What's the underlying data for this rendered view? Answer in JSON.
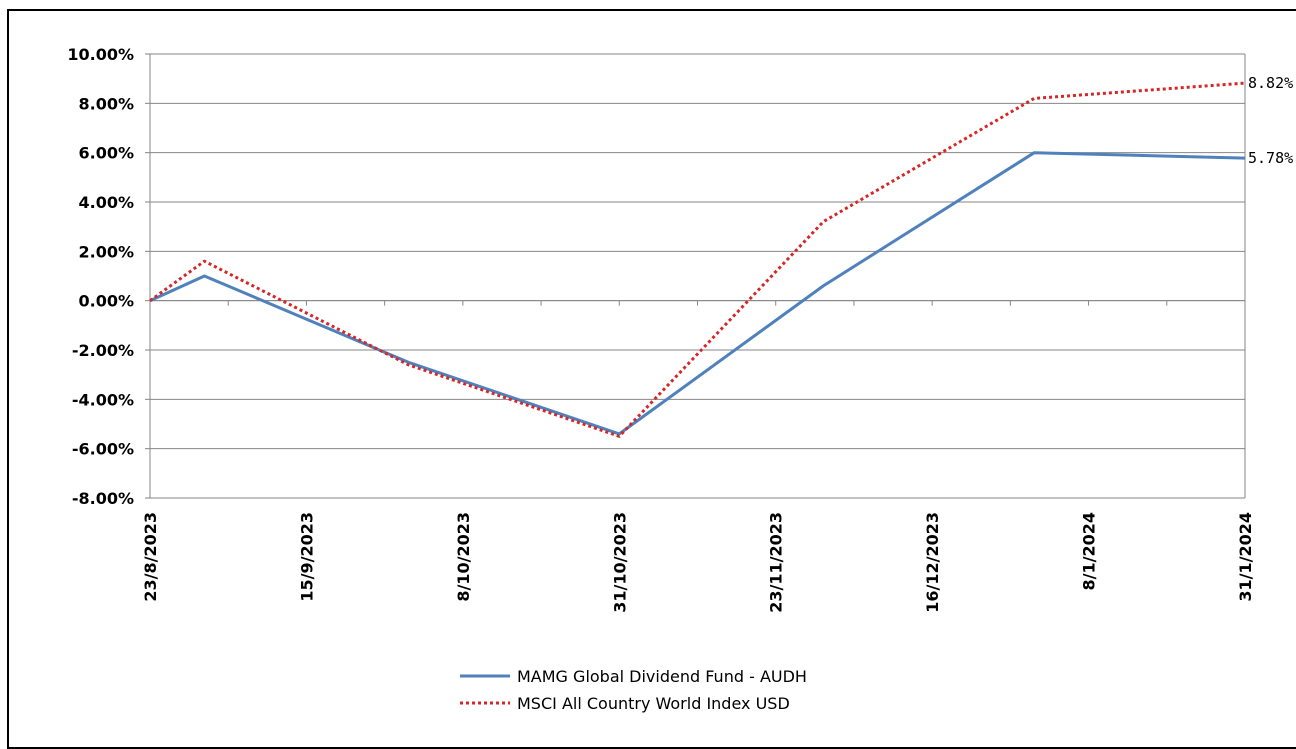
{
  "chart_data": {
    "type": "line",
    "title": "",
    "xlabel": "",
    "ylabel": "",
    "ylim": [
      -8,
      10
    ],
    "y_ticks": [
      10,
      8,
      6,
      4,
      2,
      0,
      -2,
      -4,
      -6,
      -8
    ],
    "y_tick_labels": [
      "10.00%",
      "8.00%",
      "6.00%",
      "4.00%",
      "2.00%",
      "0.00%",
      "-2.00%",
      "-4.00%",
      "-6.00%",
      "-8.00%"
    ],
    "x_tick_labels": [
      "23/8/2023",
      "15/9/2023",
      "8/10/2023",
      "31/10/2023",
      "23/11/2023",
      "16/12/2023",
      "8/1/2024",
      "31/1/2024"
    ],
    "x_range": [
      "2023-08-23",
      "2024-01-31"
    ],
    "grid": "horizontal",
    "legend_position": "bottom",
    "series": [
      {
        "name": "MAMG Global Dividend Fund - AUDH",
        "color": "#4f81bd",
        "style": "solid",
        "points": [
          {
            "x": "2023-08-23",
            "y": 0.0
          },
          {
            "x": "2023-08-31",
            "y": 1.0
          },
          {
            "x": "2023-09-30",
            "y": -2.5
          },
          {
            "x": "2023-10-31",
            "y": -5.4
          },
          {
            "x": "2023-11-30",
            "y": 0.6
          },
          {
            "x": "2023-12-31",
            "y": 6.0
          },
          {
            "x": "2024-01-31",
            "y": 5.78
          }
        ],
        "end_label": "5.78%"
      },
      {
        "name": "MSCI All Country World Index USD",
        "color": "#d62728",
        "style": "dotted",
        "points": [
          {
            "x": "2023-08-23",
            "y": 0.0
          },
          {
            "x": "2023-08-31",
            "y": 1.6
          },
          {
            "x": "2023-09-30",
            "y": -2.6
          },
          {
            "x": "2023-10-31",
            "y": -5.5
          },
          {
            "x": "2023-11-30",
            "y": 3.2
          },
          {
            "x": "2023-12-31",
            "y": 8.2
          },
          {
            "x": "2024-01-31",
            "y": 8.82
          }
        ],
        "end_label": "8.82%"
      }
    ]
  }
}
